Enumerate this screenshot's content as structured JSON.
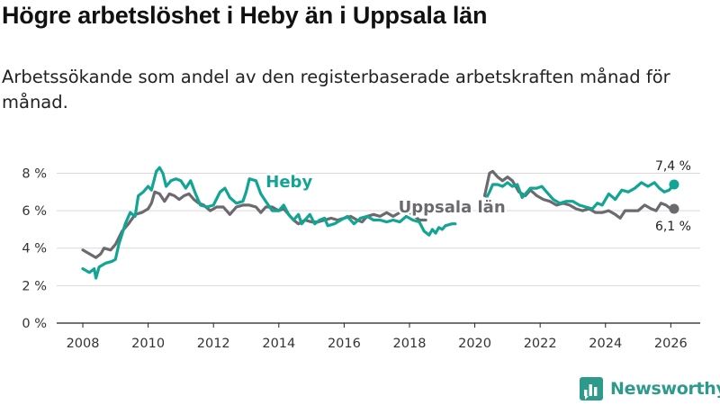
{
  "title": "Högre arbetslöshet i Heby än i Uppsala län",
  "subtitle": "Arbetssökande som andel av den registerbaserade arbetskraften månad för månad.",
  "brand": {
    "name": "Newsworthy",
    "icon": "bar-chart-logo-icon"
  },
  "colors": {
    "heby": "#12a593",
    "uppsala": "#6c6a6e",
    "grid": "#d9d9d9",
    "axis": "#222222",
    "brand": "#2e9a8c"
  },
  "chart_data": {
    "type": "line",
    "title": "Högre arbetslöshet i Heby än i Uppsala län",
    "subtitle": "Arbetssökande som andel av den registerbaserade arbetskraften månad för månad.",
    "xlabel": "",
    "ylabel": "",
    "xlim": [
      2007.2,
      2026.9
    ],
    "ylim": [
      0,
      8.6
    ],
    "grid": true,
    "x_ticks": [
      2008,
      2010,
      2012,
      2014,
      2016,
      2018,
      2020,
      2022,
      2024,
      2026
    ],
    "x_tick_labels": [
      "2008",
      "2010",
      "2012",
      "2014",
      "2016",
      "2018",
      "2020",
      "2022",
      "2024",
      "2026"
    ],
    "y_ticks": [
      0,
      2,
      4,
      6,
      8
    ],
    "y_tick_labels": [
      "0 %",
      "2 %",
      "4 %",
      "6 %",
      "8 %"
    ],
    "series": [
      {
        "name": "Heby",
        "label": "Heby",
        "color": "#12a593",
        "end_label": "7,4 %",
        "label_at": [
          2013.6,
          7.25
        ],
        "points": [
          [
            2008.0,
            2.9
          ],
          [
            2008.2,
            2.7
          ],
          [
            2008.35,
            2.9
          ],
          [
            2008.4,
            2.4
          ],
          [
            2008.5,
            3.0
          ],
          [
            2008.7,
            3.2
          ],
          [
            2008.9,
            3.3
          ],
          [
            2009.0,
            3.4
          ],
          [
            2009.1,
            4.2
          ],
          [
            2009.3,
            5.3
          ],
          [
            2009.45,
            5.9
          ],
          [
            2009.6,
            5.7
          ],
          [
            2009.7,
            6.8
          ],
          [
            2009.85,
            7.0
          ],
          [
            2010.0,
            7.3
          ],
          [
            2010.1,
            7.1
          ],
          [
            2010.25,
            8.1
          ],
          [
            2010.35,
            8.3
          ],
          [
            2010.45,
            8.0
          ],
          [
            2010.55,
            7.3
          ],
          [
            2010.7,
            7.6
          ],
          [
            2010.85,
            7.7
          ],
          [
            2011.0,
            7.6
          ],
          [
            2011.15,
            7.2
          ],
          [
            2011.3,
            7.6
          ],
          [
            2011.45,
            6.9
          ],
          [
            2011.6,
            6.3
          ],
          [
            2011.8,
            6.2
          ],
          [
            2012.0,
            6.3
          ],
          [
            2012.2,
            7.0
          ],
          [
            2012.35,
            7.2
          ],
          [
            2012.5,
            6.7
          ],
          [
            2012.7,
            6.4
          ],
          [
            2012.9,
            6.5
          ],
          [
            2013.0,
            7.0
          ],
          [
            2013.1,
            7.7
          ],
          [
            2013.3,
            7.6
          ],
          [
            2013.45,
            6.9
          ],
          [
            2013.6,
            6.5
          ],
          [
            2013.8,
            6.0
          ],
          [
            2014.0,
            6.0
          ],
          [
            2014.15,
            6.3
          ],
          [
            2014.3,
            5.8
          ],
          [
            2014.45,
            5.5
          ],
          [
            2014.6,
            5.8
          ],
          [
            2014.7,
            5.3
          ],
          [
            2014.8,
            5.5
          ],
          [
            2014.95,
            5.8
          ],
          [
            2015.1,
            5.3
          ],
          [
            2015.25,
            5.5
          ],
          [
            2015.4,
            5.6
          ],
          [
            2015.5,
            5.2
          ],
          [
            2015.7,
            5.3
          ],
          [
            2015.9,
            5.5
          ],
          [
            2016.1,
            5.7
          ],
          [
            2016.3,
            5.3
          ],
          [
            2016.5,
            5.6
          ],
          [
            2016.7,
            5.7
          ],
          [
            2016.9,
            5.5
          ],
          [
            2017.1,
            5.5
          ],
          [
            2017.3,
            5.4
          ],
          [
            2017.5,
            5.5
          ],
          [
            2017.7,
            5.4
          ],
          [
            2017.9,
            5.7
          ],
          [
            2018.1,
            5.5
          ],
          [
            2018.3,
            5.4
          ],
          [
            2018.45,
            4.9
          ],
          [
            2018.6,
            4.7
          ],
          [
            2018.7,
            5.0
          ],
          [
            2018.8,
            4.8
          ],
          [
            2018.9,
            5.1
          ],
          [
            2019.0,
            5.0
          ],
          [
            2019.1,
            5.2
          ],
          [
            2019.3,
            5.3
          ],
          [
            2019.4,
            5.3
          ]
        ],
        "points_segment_2": [
          [
            2020.3,
            6.5
          ],
          [
            2020.45,
            7.0
          ],
          [
            2020.55,
            7.4
          ],
          [
            2020.7,
            7.4
          ],
          [
            2020.85,
            7.3
          ],
          [
            2021.0,
            7.5
          ],
          [
            2021.15,
            7.3
          ],
          [
            2021.3,
            7.4
          ],
          [
            2021.45,
            6.7
          ],
          [
            2021.55,
            6.9
          ],
          [
            2021.7,
            7.2
          ],
          [
            2021.9,
            7.2
          ],
          [
            2022.05,
            7.3
          ],
          [
            2022.2,
            7.0
          ],
          [
            2022.4,
            6.6
          ],
          [
            2022.6,
            6.4
          ],
          [
            2022.8,
            6.5
          ],
          [
            2023.0,
            6.5
          ],
          [
            2023.2,
            6.3
          ],
          [
            2023.4,
            6.2
          ],
          [
            2023.6,
            6.1
          ],
          [
            2023.75,
            6.4
          ],
          [
            2023.9,
            6.3
          ],
          [
            2024.1,
            6.9
          ],
          [
            2024.3,
            6.6
          ],
          [
            2024.5,
            7.1
          ],
          [
            2024.7,
            7.0
          ],
          [
            2024.9,
            7.2
          ],
          [
            2025.1,
            7.5
          ],
          [
            2025.3,
            7.3
          ],
          [
            2025.5,
            7.5
          ],
          [
            2025.65,
            7.2
          ],
          [
            2025.8,
            7.0
          ],
          [
            2025.95,
            7.1
          ],
          [
            2026.1,
            7.4
          ]
        ]
      },
      {
        "name": "Uppsala län",
        "label": "Uppsala län",
        "color": "#6c6a6e",
        "end_label": "6,1 %",
        "label_at": [
          2019.3,
          5.9
        ],
        "points": [
          [
            2008.0,
            3.9
          ],
          [
            2008.2,
            3.7
          ],
          [
            2008.4,
            3.5
          ],
          [
            2008.55,
            3.7
          ],
          [
            2008.65,
            4.0
          ],
          [
            2008.85,
            3.9
          ],
          [
            2009.0,
            4.2
          ],
          [
            2009.2,
            4.9
          ],
          [
            2009.4,
            5.3
          ],
          [
            2009.6,
            5.8
          ],
          [
            2009.8,
            5.9
          ],
          [
            2010.0,
            6.1
          ],
          [
            2010.1,
            6.4
          ],
          [
            2010.2,
            7.0
          ],
          [
            2010.35,
            6.9
          ],
          [
            2010.5,
            6.5
          ],
          [
            2010.65,
            6.9
          ],
          [
            2010.8,
            6.8
          ],
          [
            2010.95,
            6.6
          ],
          [
            2011.1,
            6.8
          ],
          [
            2011.25,
            6.9
          ],
          [
            2011.4,
            6.6
          ],
          [
            2011.55,
            6.4
          ],
          [
            2011.7,
            6.3
          ],
          [
            2011.9,
            6.0
          ],
          [
            2012.1,
            6.2
          ],
          [
            2012.3,
            6.2
          ],
          [
            2012.5,
            5.8
          ],
          [
            2012.7,
            6.2
          ],
          [
            2012.9,
            6.3
          ],
          [
            2013.1,
            6.3
          ],
          [
            2013.3,
            6.2
          ],
          [
            2013.45,
            5.9
          ],
          [
            2013.6,
            6.2
          ],
          [
            2013.8,
            6.2
          ],
          [
            2014.0,
            6.0
          ],
          [
            2014.15,
            6.1
          ],
          [
            2014.3,
            5.8
          ],
          [
            2014.45,
            5.5
          ],
          [
            2014.6,
            5.3
          ],
          [
            2014.8,
            5.5
          ],
          [
            2015.0,
            5.4
          ],
          [
            2015.2,
            5.4
          ],
          [
            2015.4,
            5.5
          ],
          [
            2015.6,
            5.6
          ],
          [
            2015.8,
            5.5
          ],
          [
            2016.0,
            5.6
          ],
          [
            2016.2,
            5.7
          ],
          [
            2016.4,
            5.5
          ],
          [
            2016.55,
            5.4
          ],
          [
            2016.7,
            5.7
          ],
          [
            2016.9,
            5.8
          ],
          [
            2017.1,
            5.7
          ],
          [
            2017.3,
            5.9
          ],
          [
            2017.5,
            5.7
          ],
          [
            2017.7,
            5.9
          ],
          [
            2017.9,
            6.0
          ],
          [
            2018.1,
            5.8
          ],
          [
            2018.3,
            5.5
          ],
          [
            2018.5,
            5.5
          ]
        ],
        "points_segment_2": [
          [
            2020.3,
            6.8
          ],
          [
            2020.45,
            8.0
          ],
          [
            2020.55,
            8.1
          ],
          [
            2020.7,
            7.8
          ],
          [
            2020.85,
            7.6
          ],
          [
            2021.0,
            7.8
          ],
          [
            2021.15,
            7.6
          ],
          [
            2021.35,
            7.0
          ],
          [
            2021.55,
            6.8
          ],
          [
            2021.7,
            7.1
          ],
          [
            2021.9,
            6.8
          ],
          [
            2022.1,
            6.6
          ],
          [
            2022.3,
            6.5
          ],
          [
            2022.5,
            6.3
          ],
          [
            2022.7,
            6.4
          ],
          [
            2022.9,
            6.3
          ],
          [
            2023.1,
            6.1
          ],
          [
            2023.3,
            6.0
          ],
          [
            2023.5,
            6.1
          ],
          [
            2023.7,
            5.9
          ],
          [
            2023.9,
            5.9
          ],
          [
            2024.1,
            6.0
          ],
          [
            2024.3,
            5.8
          ],
          [
            2024.45,
            5.6
          ],
          [
            2024.6,
            6.0
          ],
          [
            2024.8,
            6.0
          ],
          [
            2025.0,
            6.0
          ],
          [
            2025.2,
            6.3
          ],
          [
            2025.4,
            6.1
          ],
          [
            2025.55,
            6.0
          ],
          [
            2025.7,
            6.4
          ],
          [
            2025.85,
            6.3
          ],
          [
            2026.0,
            6.1
          ],
          [
            2026.1,
            6.1
          ]
        ]
      }
    ]
  }
}
